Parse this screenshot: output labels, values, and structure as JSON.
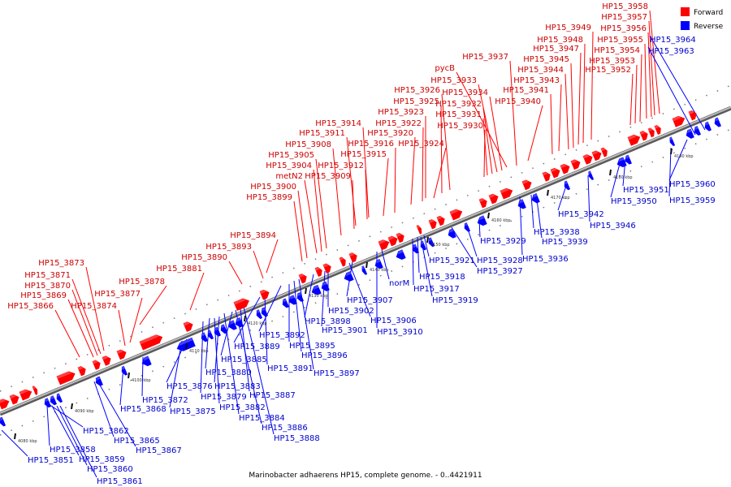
{
  "caption": "Marinobacter adhaerens HP15, complete genome. - 0..4421911",
  "legend": {
    "forward": "Forward",
    "reverse": "Reverse"
  },
  "colors": {
    "forward": "#ff0000",
    "reverse": "#0000ff",
    "backbone": "#888888"
  },
  "ticks": [
    "4080 kbp",
    "4090 kbp",
    "4100 kbp",
    "4110 kbp",
    "4120 kbp",
    "4130 kbp",
    "4140 kbp",
    "4150 kbp",
    "4160 kbp",
    "4170 kbp",
    "4180 kbp",
    "4190 kbp"
  ],
  "forward_genes": [
    "HP15_3866",
    "HP15_3869",
    "HP15_3870",
    "HP15_3871",
    "HP15_3873",
    "HP15_3874",
    "HP15_3877",
    "HP15_3878",
    "HP15_3881",
    "HP15_3890",
    "HP15_3893",
    "HP15_3894",
    "HP15_3899",
    "HP15_3900",
    "metN2",
    "HP15_3904",
    "HP15_3905",
    "HP15_3908",
    "HP15_3909",
    "HP15_3911",
    "HP15_3912",
    "HP15_3914",
    "HP15_3915",
    "HP15_3916",
    "HP15_3920",
    "HP15_3922",
    "HP15_3923",
    "HP15_3924",
    "HP15_3925",
    "HP15_3926",
    "HP15_3930",
    "HP15_3931",
    "HP15_3932",
    "HP15_3933",
    "HP15_3934",
    "pycB",
    "HP15_3937",
    "HP15_3940",
    "HP15_3941",
    "HP15_3943",
    "HP15_3944",
    "HP15_3945",
    "HP15_3947",
    "HP15_3948",
    "HP15_3949",
    "HP15_3952",
    "HP15_3953",
    "HP15_3954",
    "HP15_3955",
    "HP15_3956",
    "HP15_3957",
    "HP15_3958"
  ],
  "reverse_genes": [
    "HP15_3851",
    "HP15_3858",
    "HP15_3859",
    "HP15_3860",
    "HP15_3861",
    "HP15_3862",
    "HP15_3865",
    "HP15_3867",
    "HP15_3868",
    "HP15_3872",
    "HP15_3875",
    "HP15_3876",
    "HP15_3879",
    "HP15_3880",
    "HP15_3882",
    "HP15_3883",
    "HP15_3884",
    "HP15_3885",
    "HP15_3886",
    "HP15_3887",
    "HP15_3888",
    "HP15_3889",
    "HP15_3891",
    "HP15_3892",
    "HP15_3895",
    "HP15_3896",
    "HP15_3897",
    "HP15_3898",
    "HP15_3901",
    "HP15_3902",
    "HP15_3906",
    "HP15_3907",
    "HP15_3910",
    "norM",
    "HP15_3917",
    "HP15_3918",
    "HP15_3919",
    "HP15_3921",
    "HP15_3927",
    "HP15_3928",
    "HP15_3929",
    "HP15_3936",
    "HP15_3938",
    "HP15_3939",
    "HP15_3942",
    "HP15_3946",
    "HP15_3950",
    "HP15_3951",
    "HP15_3959",
    "HP15_3960",
    "HP15_3963",
    "HP15_3964"
  ]
}
